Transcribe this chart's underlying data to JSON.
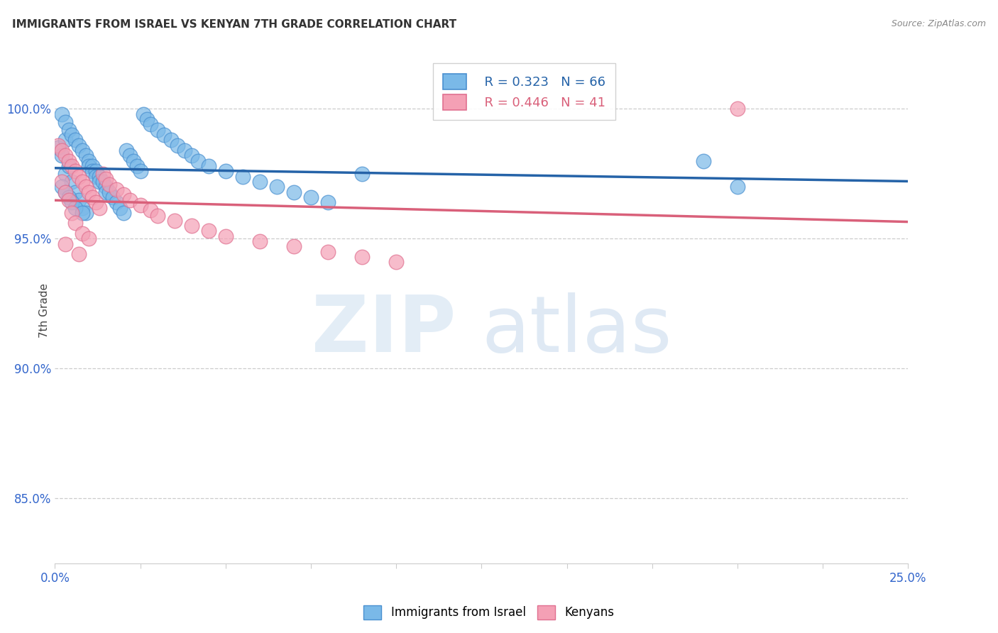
{
  "title": "IMMIGRANTS FROM ISRAEL VS KENYAN 7TH GRADE CORRELATION CHART",
  "source": "Source: ZipAtlas.com",
  "ylabel": "7th Grade",
  "ytick_labels": [
    "100.0%",
    "95.0%",
    "90.0%",
    "85.0%"
  ],
  "ytick_values": [
    1.0,
    0.95,
    0.9,
    0.85
  ],
  "xlim": [
    0.0,
    0.25
  ],
  "ylim": [
    0.825,
    1.02
  ],
  "legend_israel": "R = 0.323   N = 66",
  "legend_kenyan": "R = 0.446   N = 41",
  "israel_color": "#7ab9e8",
  "kenyan_color": "#f4a0b5",
  "israel_line_color": "#2563a8",
  "kenyan_line_color": "#d9607a",
  "israel_edge_color": "#4a90d0",
  "kenyan_edge_color": "#e07090",
  "israel_scatter_x": [
    0.001,
    0.002,
    0.002,
    0.003,
    0.003,
    0.003,
    0.004,
    0.004,
    0.005,
    0.005,
    0.006,
    0.006,
    0.007,
    0.007,
    0.008,
    0.008,
    0.009,
    0.009,
    0.01,
    0.01,
    0.011,
    0.011,
    0.012,
    0.012,
    0.013,
    0.013,
    0.014,
    0.015,
    0.015,
    0.016,
    0.017,
    0.018,
    0.019,
    0.02,
    0.021,
    0.022,
    0.023,
    0.024,
    0.025,
    0.026,
    0.027,
    0.028,
    0.03,
    0.032,
    0.034,
    0.036,
    0.038,
    0.04,
    0.042,
    0.045,
    0.05,
    0.055,
    0.06,
    0.065,
    0.07,
    0.075,
    0.08,
    0.09,
    0.002,
    0.003,
    0.004,
    0.005,
    0.006,
    0.008,
    0.19,
    0.2
  ],
  "israel_scatter_y": [
    0.985,
    0.998,
    0.982,
    0.995,
    0.988,
    0.975,
    0.992,
    0.978,
    0.99,
    0.972,
    0.988,
    0.968,
    0.986,
    0.965,
    0.984,
    0.962,
    0.982,
    0.96,
    0.98,
    0.978,
    0.978,
    0.976,
    0.976,
    0.974,
    0.974,
    0.972,
    0.972,
    0.97,
    0.968,
    0.968,
    0.966,
    0.964,
    0.962,
    0.96,
    0.984,
    0.982,
    0.98,
    0.978,
    0.976,
    0.998,
    0.996,
    0.994,
    0.992,
    0.99,
    0.988,
    0.986,
    0.984,
    0.982,
    0.98,
    0.978,
    0.976,
    0.974,
    0.972,
    0.97,
    0.968,
    0.966,
    0.964,
    0.975,
    0.97,
    0.968,
    0.966,
    0.964,
    0.962,
    0.96,
    0.98,
    0.97
  ],
  "kenyan_scatter_x": [
    0.001,
    0.002,
    0.002,
    0.003,
    0.003,
    0.004,
    0.004,
    0.005,
    0.005,
    0.006,
    0.006,
    0.007,
    0.008,
    0.008,
    0.009,
    0.01,
    0.01,
    0.011,
    0.012,
    0.013,
    0.014,
    0.015,
    0.016,
    0.018,
    0.02,
    0.022,
    0.025,
    0.028,
    0.03,
    0.035,
    0.04,
    0.045,
    0.05,
    0.06,
    0.07,
    0.08,
    0.09,
    0.1,
    0.003,
    0.007,
    0.2
  ],
  "kenyan_scatter_y": [
    0.986,
    0.984,
    0.972,
    0.982,
    0.968,
    0.98,
    0.965,
    0.978,
    0.96,
    0.976,
    0.956,
    0.974,
    0.972,
    0.952,
    0.97,
    0.968,
    0.95,
    0.966,
    0.964,
    0.962,
    0.975,
    0.973,
    0.971,
    0.969,
    0.967,
    0.965,
    0.963,
    0.961,
    0.959,
    0.957,
    0.955,
    0.953,
    0.951,
    0.949,
    0.947,
    0.945,
    0.943,
    0.941,
    0.948,
    0.944,
    1.0
  ]
}
